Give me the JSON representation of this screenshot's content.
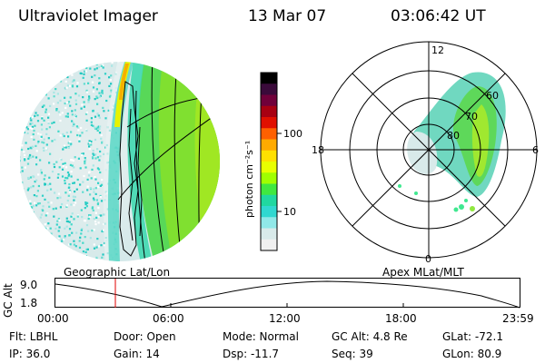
{
  "header": {
    "instrument": "Ultraviolet Imager",
    "date": "13 Mar 07",
    "time": "03:06:42 UT"
  },
  "colorbar": {
    "label": "photon cm⁻²s⁻¹",
    "ticks": [
      "100",
      "10"
    ],
    "colors": [
      "#000000",
      "#3a0a3a",
      "#70003a",
      "#a80012",
      "#e01000",
      "#ff6000",
      "#ffaa00",
      "#ffe000",
      "#e8ff00",
      "#a0ff00",
      "#40e840",
      "#20d8a0",
      "#30d8d0",
      "#90e8e8",
      "#d8eaea",
      "#f0f0f0"
    ]
  },
  "left_panel": {
    "caption": "Geographic Lat/Lon"
  },
  "right_panel": {
    "caption": "Apex MLat/MLT",
    "hour_labels": {
      "top": "12",
      "left": "18",
      "right": "6",
      "bottom": "0"
    },
    "lat_labels": [
      "60",
      "70",
      "80"
    ]
  },
  "altitude_plot": {
    "axis_label": "GC Alt",
    "y_ticks": [
      "9.0",
      "1.8"
    ],
    "x_ticks": [
      "00:00",
      "06:00",
      "12:00",
      "18:00",
      "23:59"
    ],
    "marker_time": "03:06",
    "marker_color": "#e00000"
  },
  "info": {
    "filter": "Flt: LBHL",
    "ip": "IP: 36.0",
    "door": "Door: Open",
    "gain": "Gain: 14",
    "mode": "Mode: Normal",
    "dsp": "Dsp:  -11.7",
    "gc_alt": "GC Alt: 4.8 Re",
    "seq": "Seq: 39",
    "glat": "GLat: -72.1",
    "glon": "GLon:  80.9"
  }
}
